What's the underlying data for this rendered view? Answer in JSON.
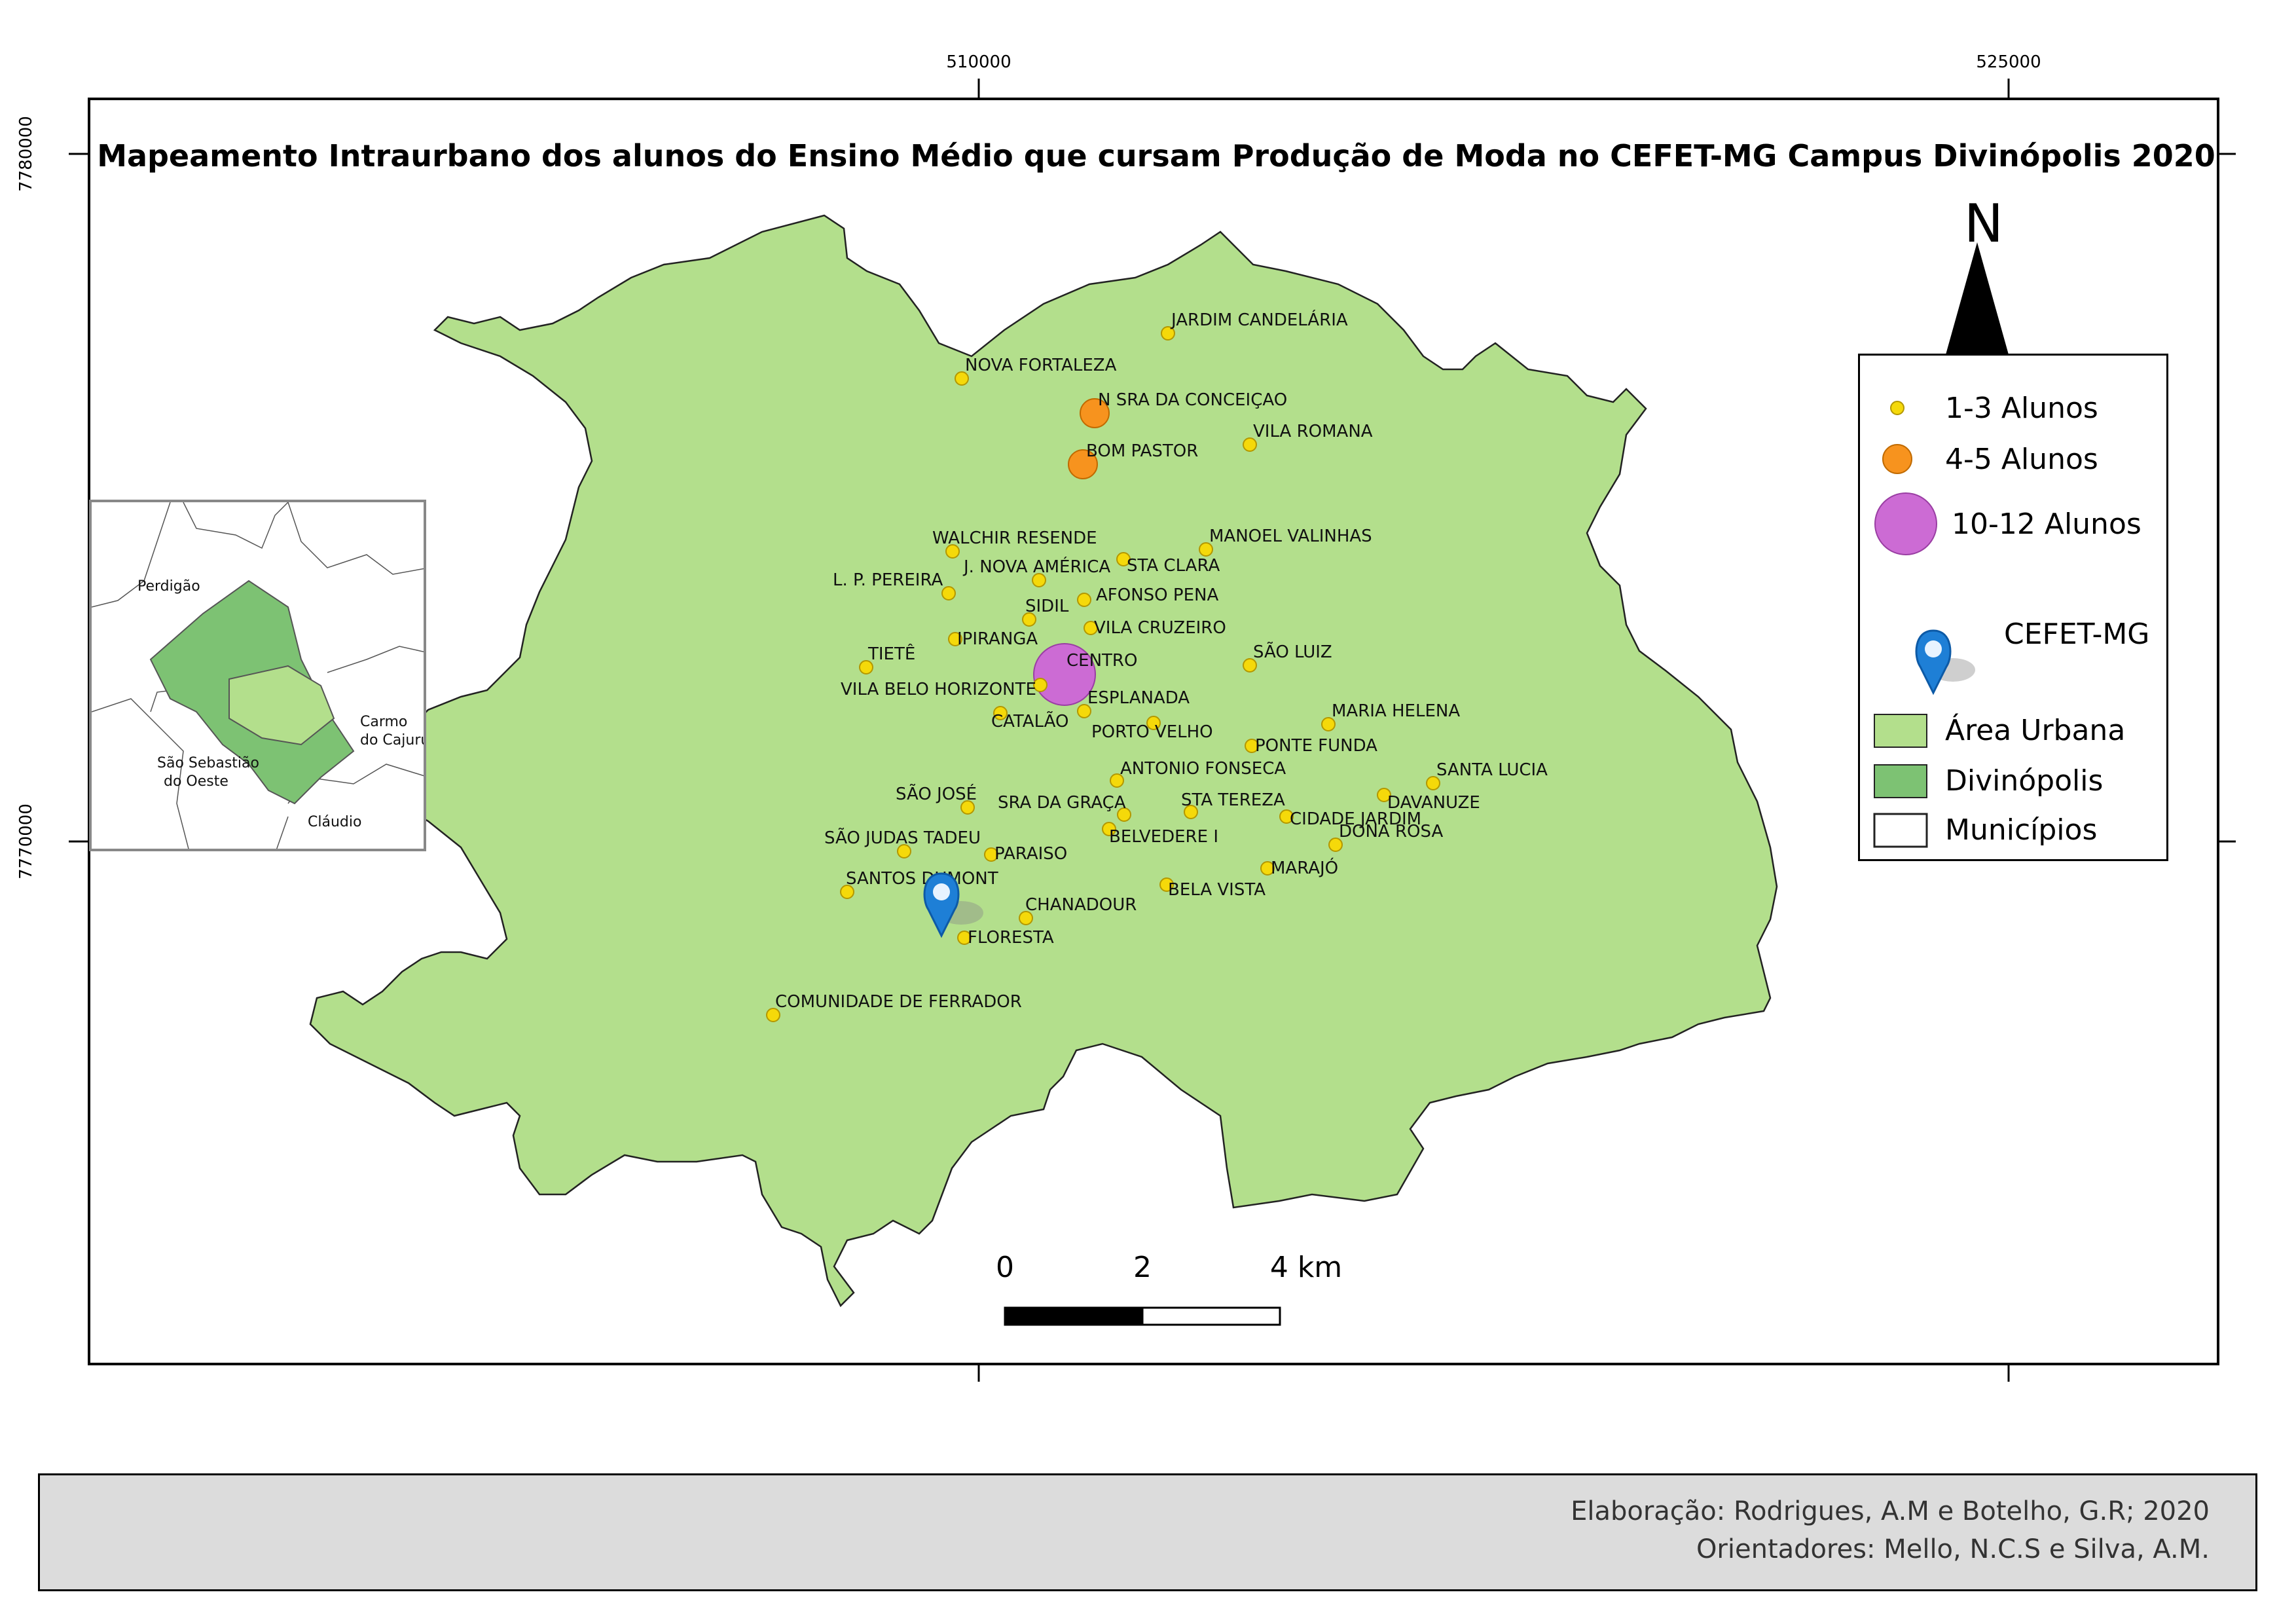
{
  "title": "Mapeamento Intraurbano dos alunos do Ensino Médio que cursam Produção de Moda no CEFET-MG Campus Divinópolis 2020",
  "grid": {
    "x_labels": [
      "510000",
      "525000"
    ],
    "y_labels": [
      "7780000",
      "7770000"
    ]
  },
  "north_label": "N",
  "scale": {
    "labels": [
      "0",
      "2",
      "4 km"
    ]
  },
  "legend": {
    "small": "1-3 Alunos",
    "medium": "4-5 Alunos",
    "large": "10-12 Alunos",
    "cefet": "CEFET-MG",
    "urban": "Área Urbana",
    "divinopolis": "Divinópolis",
    "municipios": "Municípios"
  },
  "colors": {
    "urban_fill": "#b3df8c",
    "divinopolis_fill": "#7dc273",
    "small_point": "#f5d90a",
    "medium_point": "#f7931e",
    "large_point": "#cc6bd4",
    "marker": "#1e7fd6"
  },
  "inset": {
    "labels": [
      "Perdigão",
      "Carmo",
      "do Cajuru",
      "São Sebastião",
      "do Oeste",
      "Cláudio"
    ]
  },
  "places": [
    {
      "name": "JARDIM CANDELÁRIA",
      "size": "small"
    },
    {
      "name": "NOVA FORTALEZA",
      "size": "small"
    },
    {
      "name": "N SRA DA CONCEIÇAO",
      "size": "medium"
    },
    {
      "name": "VILA ROMANA",
      "size": "small"
    },
    {
      "name": "BOM PASTOR",
      "size": "medium"
    },
    {
      "name": "WALCHIR RESENDE",
      "size": "small"
    },
    {
      "name": "MANOEL VALINHAS",
      "size": "small"
    },
    {
      "name": "J. NOVA AMÉRICA",
      "size": "small"
    },
    {
      "name": "STA CLARA",
      "size": "small"
    },
    {
      "name": "L. P. PEREIRA",
      "size": "small"
    },
    {
      "name": "AFONSO PENA",
      "size": "small"
    },
    {
      "name": "SIDIL",
      "size": "small"
    },
    {
      "name": "VILA CRUZEIRO",
      "size": "small"
    },
    {
      "name": "IPIRANGA",
      "size": "small"
    },
    {
      "name": "TIETÊ",
      "size": "small"
    },
    {
      "name": "SÃO LUIZ",
      "size": "small"
    },
    {
      "name": "CENTRO",
      "size": "large"
    },
    {
      "name": "VILA BELO HORIZONTE",
      "size": "small"
    },
    {
      "name": "ESPLANADA",
      "size": "small"
    },
    {
      "name": "MARIA HELENA",
      "size": "small"
    },
    {
      "name": "CATALÃO",
      "size": "small"
    },
    {
      "name": "PORTO VELHO",
      "size": "small"
    },
    {
      "name": "PONTE FUNDA",
      "size": "small"
    },
    {
      "name": "ANTONIO FONSECA",
      "size": "small"
    },
    {
      "name": "SANTA LUCIA",
      "size": "small"
    },
    {
      "name": "SÃO JOSÉ",
      "size": "small"
    },
    {
      "name": "SRA DA GRAÇA",
      "size": "small"
    },
    {
      "name": "STA TEREZA",
      "size": "small"
    },
    {
      "name": "DAVANUZE",
      "size": "small"
    },
    {
      "name": "CIDADE JARDIM",
      "size": "small"
    },
    {
      "name": "DONA ROSA",
      "size": "small"
    },
    {
      "name": "SÃO JUDAS TADEU",
      "size": "small"
    },
    {
      "name": "BELVEDERE I",
      "size": "small"
    },
    {
      "name": "PARAISO",
      "size": "small"
    },
    {
      "name": "MARAJÓ",
      "size": "small"
    },
    {
      "name": "SANTOS DUMONT",
      "size": "small"
    },
    {
      "name": "BELA VISTA",
      "size": "small"
    },
    {
      "name": "CHANADOUR",
      "size": "small"
    },
    {
      "name": "FLORESTA",
      "size": "small"
    },
    {
      "name": "COMUNIDADE DE FERRADOR",
      "size": "small"
    }
  ],
  "footer": {
    "line1": "Elaboração: Rodrigues, A.M e Botelho, G.R; 2020",
    "line2": "Orientadores: Mello, N.C.S e Silva, A.M."
  }
}
